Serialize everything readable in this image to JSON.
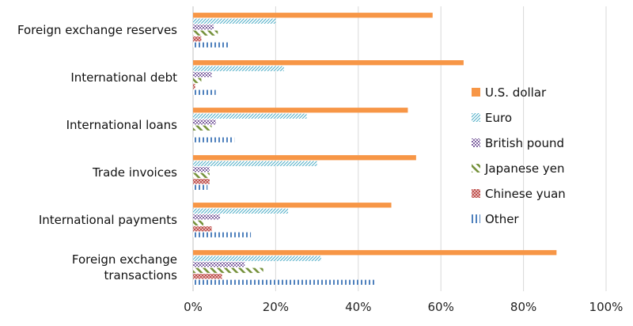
{
  "chart_data": {
    "type": "bar",
    "orientation": "horizontal",
    "categories": [
      [
        "Foreign exchange reserves"
      ],
      [
        "International debt"
      ],
      [
        "International loans"
      ],
      [
        "Trade invoices"
      ],
      [
        "International payments"
      ],
      [
        "Foreign exchange",
        "transactions"
      ]
    ],
    "series": [
      {
        "name": "U.S. dollar",
        "color": "#f79646",
        "pattern": "solid",
        "values": [
          58,
          65.5,
          52,
          54,
          48,
          88
        ]
      },
      {
        "name": "Euro",
        "color": "#4bacc6",
        "pattern": "diag",
        "values": [
          20,
          22,
          27.5,
          30,
          23,
          31
        ]
      },
      {
        "name": "British pound",
        "color": "#8064a2",
        "pattern": "checker",
        "values": [
          5,
          4.5,
          5.5,
          4,
          6.5,
          12.5
        ]
      },
      {
        "name": "Japanese yen",
        "color": "#76923c",
        "pattern": "backdiag",
        "values": [
          6,
          2,
          4.5,
          4,
          2.5,
          17
        ]
      },
      {
        "name": "Chinese yuan",
        "color": "#c0504d",
        "pattern": "cross",
        "values": [
          2,
          0.5,
          0,
          4,
          4.5,
          7
        ]
      },
      {
        "name": "Other",
        "color": "#4f81bd",
        "pattern": "vlines",
        "values": [
          8.5,
          5.5,
          10,
          3.5,
          14,
          44
        ]
      }
    ],
    "xlim": [
      0,
      100
    ],
    "xticks": [
      "0%",
      "20%",
      "40%",
      "60%",
      "80%",
      "100%"
    ],
    "grid": true,
    "legend_position": "right"
  }
}
